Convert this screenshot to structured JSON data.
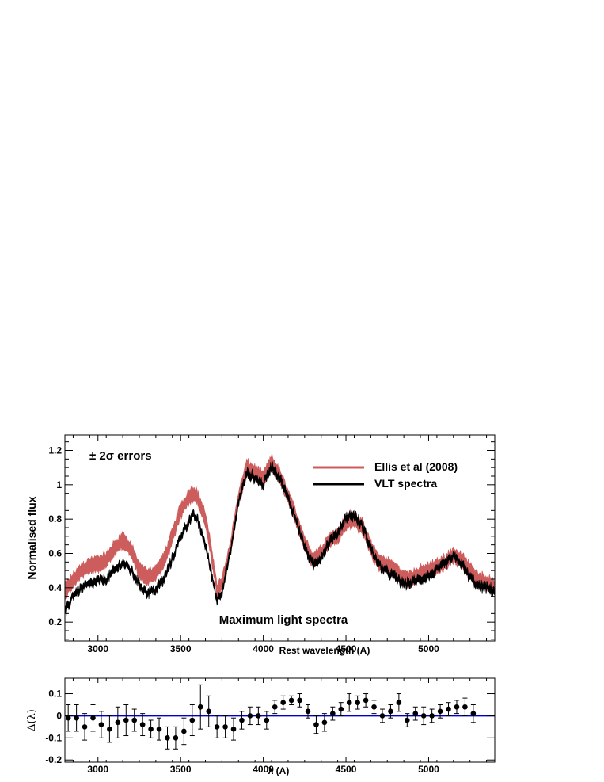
{
  "chart_data": [
    {
      "type": "area",
      "panel": "top",
      "xlabel": "Rest wavelength (A)",
      "ylabel": "Normalised flux",
      "xlim": [
        2800,
        5400
      ],
      "ylim": [
        0.09,
        1.29
      ],
      "xticks": [
        3000,
        3500,
        4000,
        4500,
        5000
      ],
      "yticks": [
        0.2,
        0.4,
        0.6,
        0.8,
        1,
        1.2
      ],
      "ytick_labels": [
        "0.2",
        "0.4",
        "0.6",
        "0.8",
        "1",
        "1.2"
      ],
      "annotations": {
        "errors": "± 2σ errors",
        "center": "Maximum light spectra"
      },
      "legend_position": "top-right",
      "series": [
        {
          "name": "Ellis et al (2008)",
          "color": "#cd5c5c",
          "x": [
            2800,
            2850,
            2900,
            2950,
            3000,
            3050,
            3100,
            3150,
            3200,
            3250,
            3300,
            3350,
            3400,
            3450,
            3500,
            3550,
            3580,
            3600,
            3650,
            3700,
            3720,
            3750,
            3800,
            3850,
            3900,
            3950,
            4000,
            4050,
            4100,
            4150,
            4200,
            4250,
            4300,
            4350,
            4400,
            4450,
            4500,
            4550,
            4600,
            4650,
            4700,
            4750,
            4800,
            4850,
            4900,
            4950,
            5000,
            5050,
            5100,
            5150,
            5200,
            5250,
            5300,
            5350,
            5400
          ],
          "values": [
            0.38,
            0.44,
            0.5,
            0.53,
            0.54,
            0.56,
            0.63,
            0.68,
            0.62,
            0.5,
            0.46,
            0.49,
            0.56,
            0.7,
            0.85,
            0.93,
            0.95,
            0.93,
            0.8,
            0.52,
            0.38,
            0.42,
            0.63,
            0.92,
            1.1,
            1.07,
            1.03,
            1.13,
            1.05,
            0.93,
            0.8,
            0.66,
            0.56,
            0.6,
            0.68,
            0.7,
            0.78,
            0.8,
            0.75,
            0.63,
            0.55,
            0.53,
            0.5,
            0.45,
            0.46,
            0.48,
            0.5,
            0.52,
            0.55,
            0.59,
            0.56,
            0.5,
            0.45,
            0.43,
            0.4
          ]
        },
        {
          "name": "VLT spectra",
          "color": "#000000",
          "x": [
            2800,
            2850,
            2900,
            2950,
            3000,
            3050,
            3100,
            3150,
            3200,
            3250,
            3300,
            3350,
            3400,
            3450,
            3500,
            3550,
            3580,
            3600,
            3650,
            3700,
            3720,
            3750,
            3800,
            3850,
            3900,
            3950,
            4000,
            4050,
            4100,
            4150,
            4200,
            4250,
            4300,
            4350,
            4400,
            4450,
            4500,
            4550,
            4600,
            4650,
            4700,
            4750,
            4800,
            4850,
            4900,
            4950,
            5000,
            5050,
            5100,
            5150,
            5200,
            5250,
            5300,
            5350,
            5400
          ],
          "values": [
            0.25,
            0.36,
            0.4,
            0.42,
            0.44,
            0.45,
            0.5,
            0.55,
            0.5,
            0.42,
            0.37,
            0.39,
            0.45,
            0.57,
            0.7,
            0.79,
            0.82,
            0.8,
            0.65,
            0.42,
            0.33,
            0.38,
            0.6,
            0.9,
            1.07,
            1.04,
            1.0,
            1.11,
            1.04,
            0.92,
            0.79,
            0.64,
            0.53,
            0.58,
            0.67,
            0.72,
            0.81,
            0.82,
            0.76,
            0.63,
            0.53,
            0.49,
            0.46,
            0.42,
            0.43,
            0.45,
            0.47,
            0.5,
            0.54,
            0.58,
            0.54,
            0.46,
            0.41,
            0.4,
            0.38
          ]
        }
      ]
    },
    {
      "type": "scatter",
      "panel": "bottom",
      "xlabel": "λ (A)",
      "ylabel": "Δ(λ)",
      "xlim": [
        2800,
        5400
      ],
      "ylim": [
        -0.21,
        0.17
      ],
      "xticks": [
        3000,
        3500,
        4000,
        4500,
        5000
      ],
      "yticks": [
        -0.2,
        -0.1,
        0,
        0.1
      ],
      "ytick_labels": [
        "-0.2",
        "-0.1",
        "0",
        "0.1"
      ],
      "reference_line": {
        "y": 0,
        "color": "#0000cc"
      },
      "series": [
        {
          "name": "",
          "color": "#000000",
          "x": [
            2820,
            2870,
            2920,
            2970,
            3020,
            3070,
            3120,
            3170,
            3220,
            3270,
            3320,
            3370,
            3420,
            3470,
            3520,
            3570,
            3620,
            3670,
            3720,
            3770,
            3820,
            3870,
            3920,
            3970,
            4020,
            4070,
            4120,
            4170,
            4220,
            4270,
            4320,
            4370,
            4420,
            4470,
            4520,
            4570,
            4620,
            4670,
            4720,
            4770,
            4820,
            4870,
            4920,
            4970,
            5020,
            5070,
            5120,
            5170,
            5220,
            5270
          ],
          "values": [
            -0.01,
            -0.01,
            -0.05,
            -0.01,
            -0.04,
            -0.06,
            -0.03,
            -0.02,
            -0.02,
            -0.04,
            -0.06,
            -0.06,
            -0.1,
            -0.1,
            -0.07,
            -0.02,
            0.04,
            0.02,
            -0.05,
            -0.05,
            -0.06,
            -0.02,
            0.0,
            0.0,
            -0.02,
            0.04,
            0.06,
            0.07,
            0.07,
            0.02,
            -0.04,
            -0.03,
            0.01,
            0.03,
            0.06,
            0.06,
            0.07,
            0.04,
            0.0,
            0.02,
            0.06,
            -0.02,
            0.01,
            0.0,
            0.0,
            0.02,
            0.03,
            0.04,
            0.04,
            0.01
          ],
          "errors": [
            0.06,
            0.06,
            0.06,
            0.06,
            0.06,
            0.06,
            0.07,
            0.07,
            0.05,
            0.05,
            0.04,
            0.05,
            0.05,
            0.05,
            0.06,
            0.07,
            0.1,
            0.07,
            0.05,
            0.05,
            0.05,
            0.04,
            0.04,
            0.04,
            0.04,
            0.03,
            0.03,
            0.02,
            0.03,
            0.03,
            0.04,
            0.04,
            0.03,
            0.03,
            0.04,
            0.03,
            0.03,
            0.03,
            0.03,
            0.03,
            0.04,
            0.03,
            0.03,
            0.04,
            0.03,
            0.03,
            0.03,
            0.03,
            0.04,
            0.04
          ]
        }
      ]
    }
  ]
}
